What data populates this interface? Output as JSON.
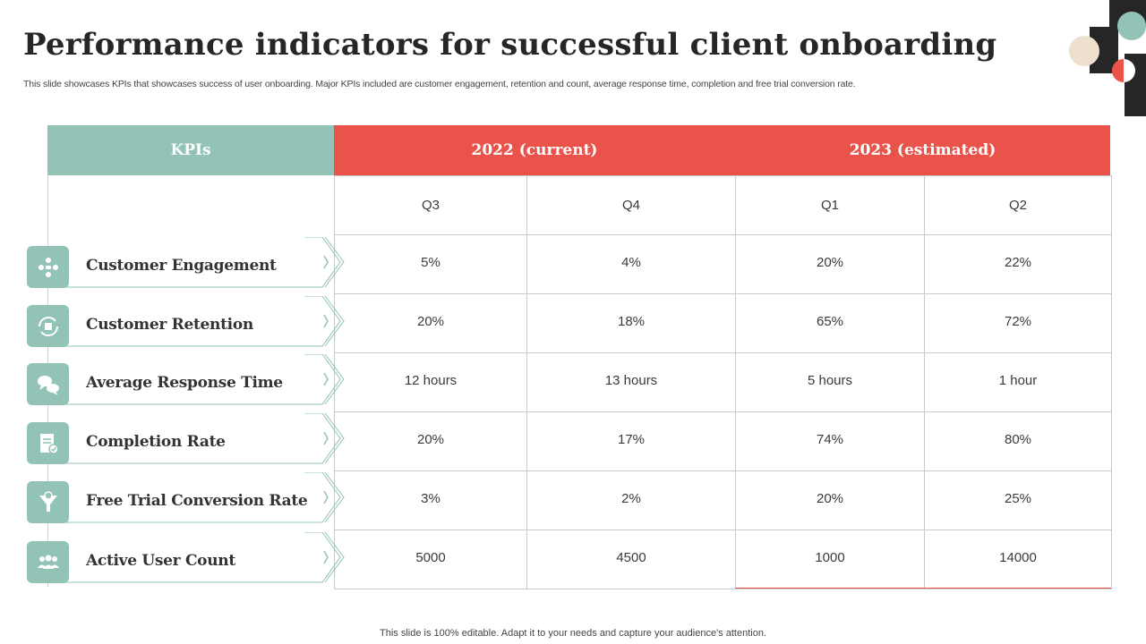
{
  "title": "Performance indicators for successful client onboarding",
  "subtitle": "This slide showcases KPIs that showcases success of user onboarding. Major KPIs included are customer engagement, retention and count, average response time, completion and free trial conversion rate.",
  "footer": "This slide is 100% editable. Adapt it to your needs and capture your audience's attention.",
  "colors": {
    "teal": "#92c3b6",
    "red": "#e9534a",
    "dark": "#262626",
    "beige": "#eedfcf"
  },
  "table": {
    "kpi_header": "KPIs",
    "group_headers": [
      "2022 (current)",
      "2023 (estimated)"
    ],
    "quarters": [
      "Q3",
      "Q4",
      "Q1",
      "Q2"
    ],
    "rows": [
      {
        "kpi": "Customer Engagement",
        "icon": "people-network-icon",
        "values": [
          "5%",
          "4%",
          "20%",
          "22%"
        ]
      },
      {
        "kpi": "Customer Retention",
        "icon": "retention-cycle-icon",
        "values": [
          "20%",
          "18%",
          "65%",
          "72%"
        ]
      },
      {
        "kpi": "Average Response Time",
        "icon": "chat-bubbles-icon",
        "values": [
          "12 hours",
          "13 hours",
          "5 hours",
          "1 hour"
        ]
      },
      {
        "kpi": "Completion Rate",
        "icon": "checked-document-icon",
        "values": [
          "20%",
          "17%",
          "74%",
          "80%"
        ]
      },
      {
        "kpi": "Free Trial Conversion Rate",
        "icon": "funnel-dollar-icon",
        "values": [
          "3%",
          "2%",
          "20%",
          "25%"
        ]
      },
      {
        "kpi": "Active User Count",
        "icon": "user-group-icon",
        "values": [
          "5000",
          "4500",
          "1000",
          "14000"
        ]
      }
    ]
  }
}
